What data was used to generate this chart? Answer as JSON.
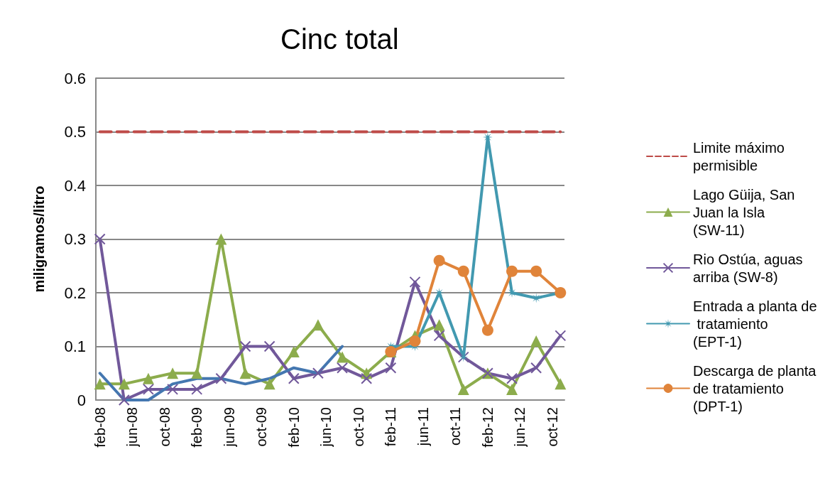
{
  "chart_data": {
    "type": "line",
    "title": "Cinc total",
    "ylabel": "miligramos/litro",
    "categories": [
      "feb-08",
      null,
      null,
      null,
      "jun-08",
      null,
      null,
      null,
      "oct-08",
      null,
      null,
      null,
      "feb-09",
      null,
      null,
      null,
      "jun-09",
      null,
      null,
      null,
      "oct-09",
      null,
      null,
      null,
      "feb-10",
      null,
      null,
      null,
      "jun-10",
      null,
      null,
      null,
      "oct-10",
      null,
      null,
      null,
      "feb-11",
      null,
      null,
      null,
      "jun-11",
      null,
      null,
      null,
      "oct-11",
      null,
      null,
      null,
      "feb-12",
      null,
      null,
      null,
      "jun-12",
      null,
      null,
      null,
      "oct-12",
      null
    ],
    "ylim": [
      0,
      0.6
    ],
    "yticks": [
      0,
      0.1,
      0.2,
      0.3,
      0.4,
      0.5,
      0.6
    ],
    "grid": "y",
    "legend": "right",
    "series": [
      {
        "name": "Limite máximo permisible",
        "color": "#be4b48",
        "marker": "none",
        "line_style": "dashed",
        "values": [
          0.5,
          null,
          null,
          0.5,
          null,
          null,
          0.5,
          null,
          null,
          0.5,
          null,
          null,
          0.5,
          null,
          null,
          0.5,
          null,
          null,
          0.5,
          null,
          null,
          0.5,
          null,
          null,
          0.5,
          null,
          null,
          0.5,
          null,
          null,
          0.5,
          null,
          null,
          0.5,
          null,
          null,
          0.5,
          null,
          null,
          0.5,
          null,
          null,
          0.5,
          null,
          null,
          0.5,
          null,
          null,
          0.5,
          null,
          null,
          0.5,
          null,
          null,
          0.5,
          null,
          null,
          0.5
        ]
      },
      {
        "name": "Lago Güija, San Juan la Isla (SW-11)",
        "color": "#8cac4c",
        "marker": "triangle",
        "values": [
          0.03,
          null,
          null,
          0.03,
          null,
          null,
          0.04,
          null,
          null,
          0.05,
          null,
          null,
          0.05,
          null,
          null,
          0.3,
          null,
          null,
          0.05,
          null,
          null,
          0.03,
          null,
          null,
          0.09,
          null,
          null,
          0.14,
          null,
          null,
          0.08,
          null,
          null,
          0.05,
          null,
          null,
          0.09,
          null,
          null,
          0.12,
          null,
          null,
          0.14,
          null,
          null,
          0.02,
          null,
          null,
          0.05,
          null,
          null,
          0.02,
          null,
          null,
          0.11,
          null,
          null,
          0.03
        ]
      },
      {
        "name": "Rio Ostúa, aguas arriba (SW-8)",
        "color": "#71589a",
        "marker": "cross",
        "values": [
          0.3,
          null,
          null,
          0,
          null,
          null,
          0.02,
          null,
          null,
          0.02,
          null,
          null,
          0.02,
          null,
          null,
          0.04,
          null,
          null,
          0.1,
          null,
          null,
          0.1,
          null,
          null,
          0.04,
          null,
          null,
          0.05,
          null,
          null,
          0.06,
          null,
          null,
          0.04,
          null,
          null,
          0.06,
          null,
          null,
          0.22,
          null,
          null,
          0.12,
          null,
          null,
          0.08,
          null,
          null,
          0.05,
          null,
          null,
          0.04,
          null,
          null,
          0.06,
          null,
          null,
          0.12
        ]
      },
      {
        "name": "Entrada a planta de tratamiento (EPT-1)",
        "color": "#4299b0",
        "marker": "star",
        "values": [
          null,
          null,
          null,
          null,
          null,
          null,
          null,
          null,
          null,
          null,
          null,
          null,
          null,
          null,
          null,
          null,
          null,
          null,
          null,
          null,
          null,
          null,
          null,
          null,
          null,
          null,
          null,
          null,
          null,
          null,
          null,
          null,
          null,
          null,
          null,
          null,
          0.1,
          null,
          null,
          0.1,
          null,
          null,
          0.2,
          null,
          null,
          0.08,
          null,
          null,
          0.49,
          null,
          null,
          0.2,
          null,
          null,
          0.19,
          null,
          null,
          0.2
        ]
      },
      {
        "name": "Descarga de planta de tratamiento (DPT-1)",
        "color": "#e0843a",
        "marker": "circle",
        "values": [
          null,
          null,
          null,
          null,
          null,
          null,
          null,
          null,
          null,
          null,
          null,
          null,
          null,
          null,
          null,
          null,
          null,
          null,
          null,
          null,
          null,
          null,
          null,
          null,
          null,
          null,
          null,
          null,
          null,
          null,
          null,
          null,
          null,
          null,
          null,
          null,
          0.09,
          null,
          null,
          0.11,
          null,
          null,
          0.26,
          null,
          null,
          0.24,
          null,
          null,
          0.13,
          null,
          null,
          0.24,
          null,
          null,
          0.24,
          null,
          null,
          0.2
        ]
      },
      {
        "color": "#4477b0",
        "marker": "none",
        "values": [
          0.05,
          null,
          null,
          0,
          null,
          null,
          0,
          null,
          null,
          0.03,
          null,
          null,
          0.04,
          null,
          null,
          0.04,
          null,
          null,
          0.03,
          null,
          null,
          0.04,
          null,
          null,
          0.06,
          null,
          null,
          0.05,
          null,
          null,
          0.1,
          null,
          null,
          null,
          null,
          null,
          null,
          null,
          null,
          null,
          null,
          null,
          null,
          null,
          null,
          null,
          null,
          null,
          null,
          null,
          null,
          null,
          null,
          null,
          null,
          null,
          null,
          null
        ]
      }
    ]
  }
}
